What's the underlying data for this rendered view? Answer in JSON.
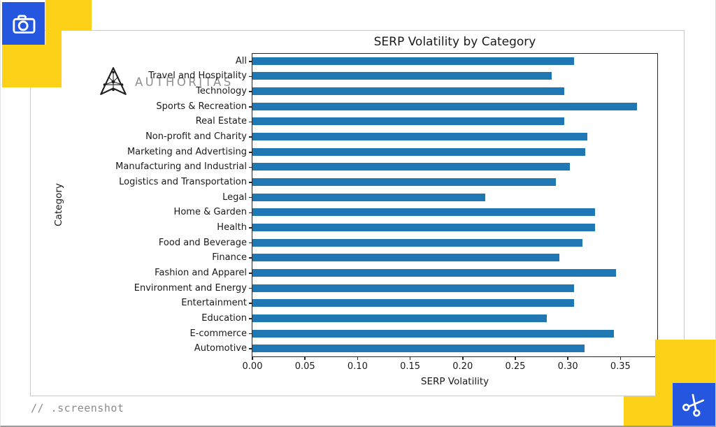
{
  "page": {
    "watermark_text": "// .screenshot"
  },
  "brand": {
    "name": "AUTHORITAS",
    "logo_icon": "authoritas-logo-icon",
    "text_color": "#8f8f8f"
  },
  "decorations": {
    "accent_blue": "#2456e0",
    "accent_yellow": "#fdd117",
    "camera_icon": "camera-icon",
    "scissors_icon": "scissors-icon"
  },
  "chart_data": {
    "type": "bar",
    "orientation": "horizontal",
    "title": "SERP Volatility by Category",
    "xlabel": "SERP Volatility",
    "ylabel": "Category",
    "categories": [
      "All",
      "Travel and Hospitality",
      "Technology",
      "Sports & Recreation",
      "Real Estate",
      "Non-profit and Charity",
      "Marketing and Advertising",
      "Manufacturing and Industrial",
      "Logistics and Transportation",
      "Legal",
      "Home & Garden",
      "Health",
      "Food and Beverage",
      "Finance",
      "Fashion and Apparel",
      "Environment and Energy",
      "Entertainment",
      "Education",
      "E-commerce",
      "Automotive"
    ],
    "values": [
      0.306,
      0.285,
      0.297,
      0.366,
      0.297,
      0.319,
      0.317,
      0.302,
      0.289,
      0.222,
      0.326,
      0.326,
      0.314,
      0.292,
      0.346,
      0.306,
      0.306,
      0.28,
      0.344,
      0.316
    ],
    "xlim": [
      0,
      0.385
    ],
    "xticks": [
      {
        "label": "0.00",
        "value": 0.0
      },
      {
        "label": "0.05",
        "value": 0.05
      },
      {
        "label": "0.10",
        "value": 0.1
      },
      {
        "label": "0.15",
        "value": 0.15
      },
      {
        "label": "0.20",
        "value": 0.2
      },
      {
        "label": "0.25",
        "value": 0.25
      },
      {
        "label": "0.30",
        "value": 0.3
      },
      {
        "label": "0.35",
        "value": 0.35
      }
    ],
    "bar_color": "#1f77b4",
    "grid": false,
    "legend": null
  }
}
